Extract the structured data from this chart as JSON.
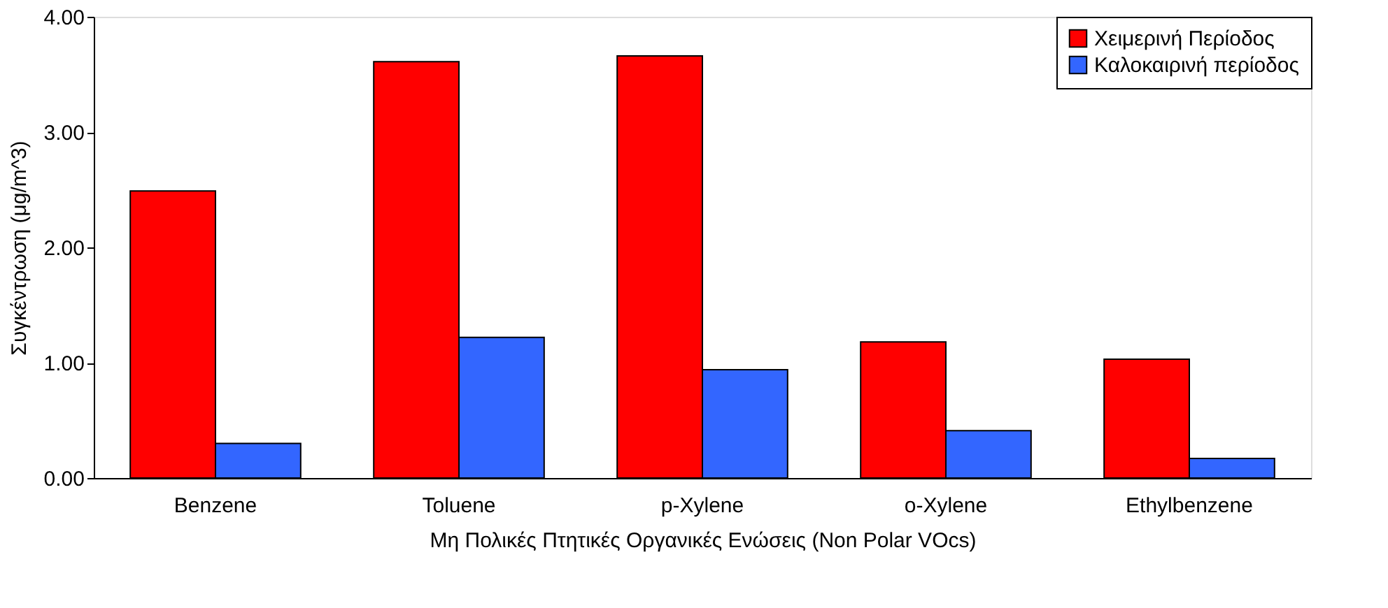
{
  "chart_data": {
    "type": "bar",
    "xlabel": "Μη Πολικές Πτητικές Οργανικές Ενώσεις  (Non Polar VOcs)",
    "ylabel": "Συγκέντρωση (μg/m^3)",
    "categories": [
      "Benzene",
      "Toluene",
      "p-Xylene",
      "o-Xylene",
      "Ethylbenzene"
    ],
    "series": [
      {
        "name": "Χειμερινή Περίοδος",
        "color": "#ff0000",
        "values": [
          2.49,
          3.61,
          3.66,
          1.18,
          1.03
        ]
      },
      {
        "name": "Καλοκαιρινή περίοδος",
        "color": "#3366ff",
        "values": [
          0.3,
          1.22,
          0.94,
          0.41,
          0.17
        ]
      }
    ],
    "ylim": [
      0,
      4
    ],
    "yticks": [
      {
        "value": 0,
        "label": "0.00"
      },
      {
        "value": 1,
        "label": "1.00"
      },
      {
        "value": 2,
        "label": "2.00"
      },
      {
        "value": 3,
        "label": "3.00"
      },
      {
        "value": 4,
        "label": "4.00"
      }
    ],
    "grid": false,
    "legend": "top right"
  }
}
